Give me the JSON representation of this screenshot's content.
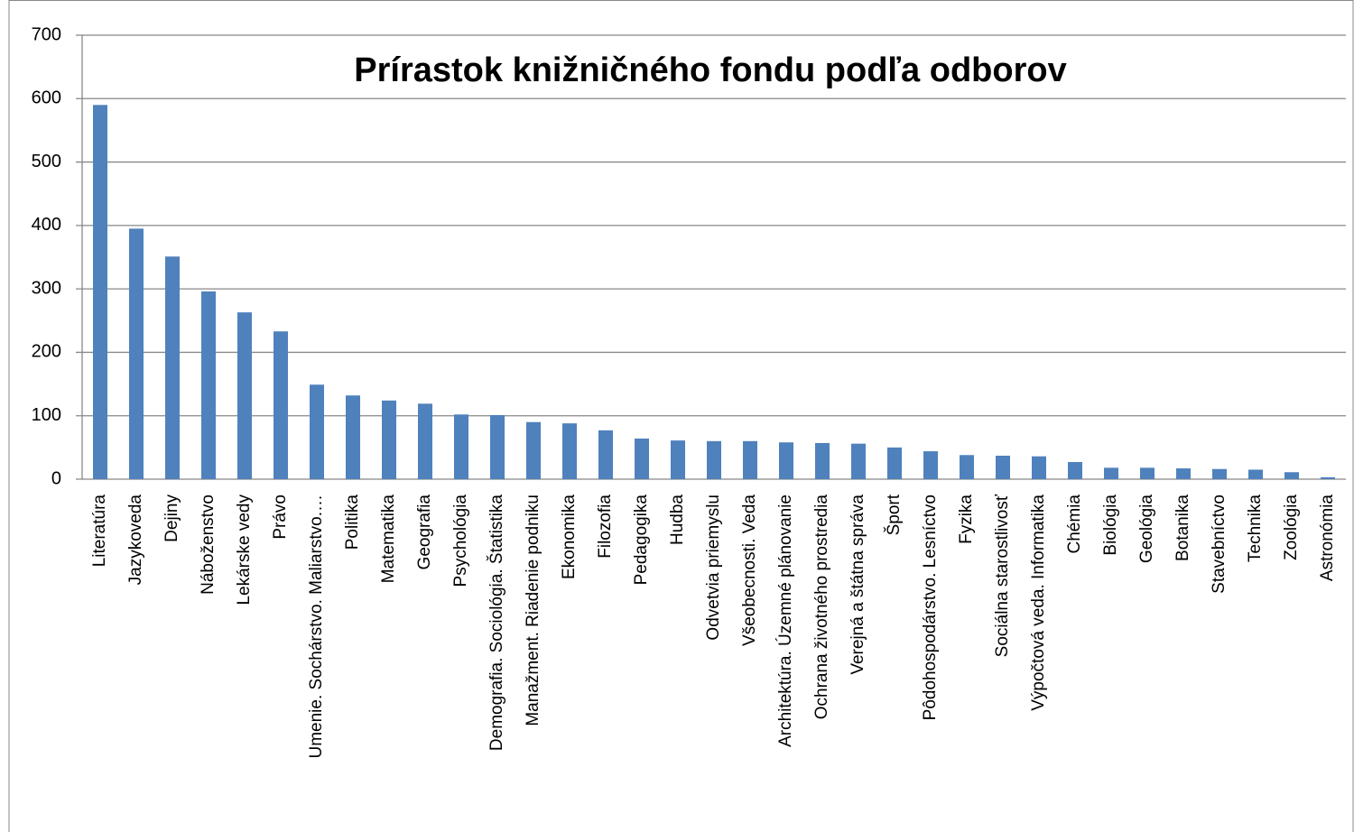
{
  "chart_data": {
    "type": "bar",
    "title": "Prírastok knižničného fondu podľa odborov",
    "categories": [
      "Literatúra",
      "Jazykoveda",
      "Dejiny",
      "Náboženstvo",
      "Lekárske vedy",
      "Právo",
      "Umenie. Sochárstvo. Maliarstvo.…",
      "Politika",
      "Matematika",
      "Geografia",
      "Psychológia",
      "Demografia. Sociológia. Štatistika",
      "Manažment. Riadenie podniku",
      "Ekonomika",
      "Filozofia",
      "Pedagogika",
      "Hudba",
      "Odvetvia priemyslu",
      "Všeobecnosti. Veda",
      "Architektúra. Územné plánovanie",
      "Ochrana životného prostredia",
      "Verejná a štátna správa",
      "Šport",
      "Pôdohospodárstvo. Lesníctvo",
      "Fyzika",
      "Sociálna starostlivosť",
      "Výpočtová veda. Informatika",
      "Chémia",
      "Biológia",
      "Geológia",
      "Botanika",
      "Stavebníctvo",
      "Technika",
      "Zoológia",
      "Astronómia"
    ],
    "values": [
      590,
      395,
      351,
      296,
      263,
      233,
      149,
      132,
      124,
      119,
      102,
      101,
      90,
      88,
      77,
      64,
      61,
      60,
      60,
      58,
      57,
      56,
      50,
      44,
      38,
      37,
      36,
      27,
      18,
      18,
      17,
      16,
      15,
      11,
      3
    ],
    "color": "#4f81bd",
    "ylim": [
      0,
      700
    ],
    "yticks": [
      0,
      100,
      200,
      300,
      400,
      500,
      600,
      700
    ],
    "grid": true
  }
}
